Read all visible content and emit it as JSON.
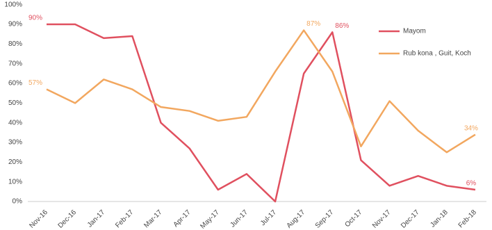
{
  "chart_data": {
    "type": "line",
    "categories": [
      "Nov-16",
      "Dec-16",
      "Jan-17",
      "Feb-17",
      "Mar-17",
      "Apr-17",
      "May-17",
      "Jun-17",
      "Jul-17",
      "Aug-17",
      "Sep-17",
      "Oct-17",
      "Nov-17",
      "Dec-17",
      "Jan-18",
      "Feb-18"
    ],
    "series": [
      {
        "name": "Mayom",
        "color": "#e0505f",
        "values": [
          90,
          90,
          83,
          84,
          40,
          27,
          6,
          14,
          0,
          65,
          86,
          21,
          8,
          13,
          8,
          6
        ],
        "value_labels": [
          "90%",
          null,
          null,
          null,
          null,
          null,
          null,
          null,
          null,
          null,
          "86%",
          null,
          null,
          null,
          null,
          "6%"
        ]
      },
      {
        "name": "Rub kona , Guit, Koch",
        "color": "#f2a75f",
        "values": [
          57,
          50,
          62,
          57,
          48,
          46,
          41,
          43,
          66,
          87,
          66,
          28,
          51,
          36,
          25,
          34
        ],
        "value_labels": [
          "57%",
          null,
          null,
          null,
          null,
          null,
          null,
          null,
          null,
          "87%",
          null,
          null,
          null,
          null,
          null,
          "34%"
        ]
      }
    ],
    "ylim": [
      0,
      100
    ],
    "yticks": [
      {
        "value": 0,
        "label": "0%"
      },
      {
        "value": 10,
        "label": "10%"
      },
      {
        "value": 20,
        "label": "20%"
      },
      {
        "value": 30,
        "label": "30%"
      },
      {
        "value": 40,
        "label": "40%"
      },
      {
        "value": 50,
        "label": "50%"
      },
      {
        "value": 60,
        "label": "60%"
      },
      {
        "value": 70,
        "label": "70%"
      },
      {
        "value": 80,
        "label": "80%"
      },
      {
        "value": 90,
        "label": "90%"
      },
      {
        "value": 100,
        "label": "100%"
      }
    ],
    "grid": false,
    "legend": "upper right"
  }
}
